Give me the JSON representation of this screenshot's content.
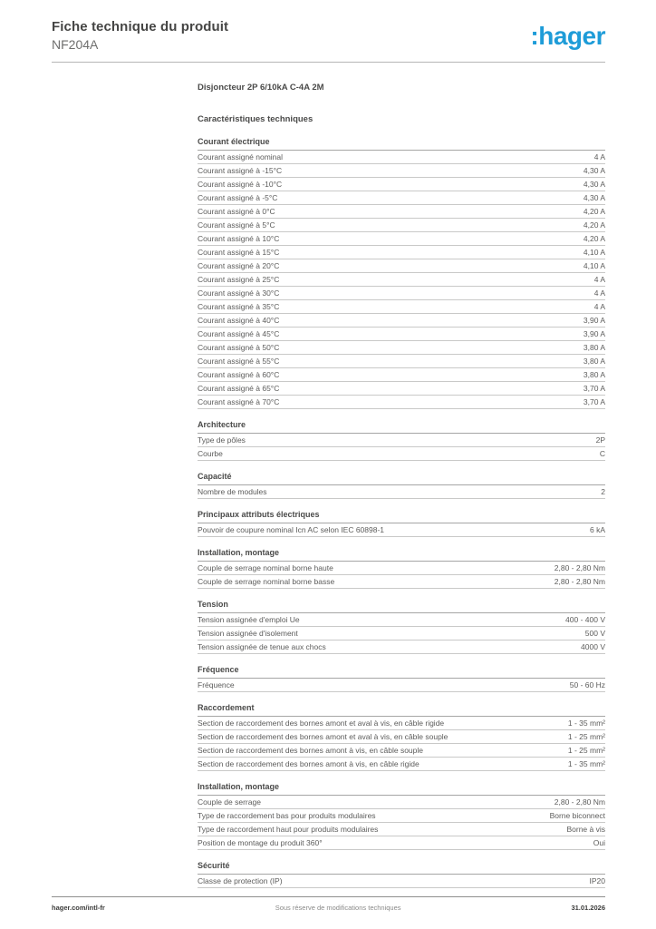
{
  "header": {
    "title": "Fiche technique du produit",
    "subtitle": "NF204A",
    "logo_text": ":hager",
    "logo_color": "#1e9cd8"
  },
  "product": {
    "name": "Disjoncteur 2P 6/10kA C-4A 2M",
    "characteristics_heading": "Caractéristiques techniques"
  },
  "sections": [
    {
      "title": "Courant électrique",
      "rows": [
        {
          "label": "Courant assigné nominal",
          "value": "4 A"
        },
        {
          "label": "Courant assigné à -15°C",
          "value": "4,30 A"
        },
        {
          "label": "Courant assigné à -10°C",
          "value": "4,30 A"
        },
        {
          "label": "Courant assigné à -5°C",
          "value": "4,30 A"
        },
        {
          "label": "Courant assigné à 0°C",
          "value": "4,20 A"
        },
        {
          "label": "Courant assigné à 5°C",
          "value": "4,20 A"
        },
        {
          "label": "Courant assigné à 10°C",
          "value": "4,20 A"
        },
        {
          "label": "Courant assigné à 15°C",
          "value": "4,10 A"
        },
        {
          "label": "Courant assigné à 20°C",
          "value": "4,10 A"
        },
        {
          "label": "Courant assigné à 25°C",
          "value": "4 A"
        },
        {
          "label": "Courant assigné à 30°C",
          "value": "4 A"
        },
        {
          "label": "Courant assigné à 35°C",
          "value": "4 A"
        },
        {
          "label": "Courant assigné à 40°C",
          "value": "3,90 A"
        },
        {
          "label": "Courant assigné à 45°C",
          "value": "3,90 A"
        },
        {
          "label": "Courant assigné à 50°C",
          "value": "3,80 A"
        },
        {
          "label": "Courant assigné à 55°C",
          "value": "3,80 A"
        },
        {
          "label": "Courant assigné à 60°C",
          "value": "3,80 A"
        },
        {
          "label": "Courant assigné à 65°C",
          "value": "3,70 A"
        },
        {
          "label": "Courant assigné à 70°C",
          "value": "3,70 A"
        }
      ]
    },
    {
      "title": "Architecture",
      "rows": [
        {
          "label": "Type de pôles",
          "value": "2P"
        },
        {
          "label": "Courbe",
          "value": "C"
        }
      ]
    },
    {
      "title": "Capacité",
      "rows": [
        {
          "label": "Nombre de modules",
          "value": "2"
        }
      ]
    },
    {
      "title": "Principaux attributs électriques",
      "rows": [
        {
          "label": "Pouvoir de coupure nominal Icn AC selon IEC 60898-1",
          "value": "6 kA"
        }
      ]
    },
    {
      "title": "Installation, montage",
      "rows": [
        {
          "label": "Couple de serrage nominal borne haute",
          "value": "2,80 - 2,80 Nm"
        },
        {
          "label": "Couple de serrage nominal borne basse",
          "value": "2,80 - 2,80 Nm"
        }
      ]
    },
    {
      "title": "Tension",
      "rows": [
        {
          "label": "Tension assignée d'emploi Ue",
          "value": "400 - 400 V"
        },
        {
          "label": "Tension assignée d'isolement",
          "value": "500 V"
        },
        {
          "label": "Tension assignée de tenue aux chocs",
          "value": "4000 V"
        }
      ]
    },
    {
      "title": "Fréquence",
      "rows": [
        {
          "label": "Fréquence",
          "value": "50 - 60 Hz"
        }
      ]
    },
    {
      "title": "Raccordement",
      "rows": [
        {
          "label": "Section de raccordement des bornes amont et aval à vis, en câble rigide",
          "value": "1 - 35 mm²"
        },
        {
          "label": "Section de raccordement des bornes amont et aval à vis, en câble souple",
          "value": "1 - 25 mm²"
        },
        {
          "label": "Section de raccordement des bornes amont à vis, en câble souple",
          "value": "1 - 25 mm²"
        },
        {
          "label": "Section de raccordement des bornes amont à vis, en câble rigide",
          "value": "1 - 35 mm²"
        }
      ]
    },
    {
      "title": "Installation, montage",
      "rows": [
        {
          "label": "Couple de serrage",
          "value": "2,80 - 2,80 Nm"
        },
        {
          "label": "Type de raccordement bas pour produits modulaires",
          "value": "Borne biconnect"
        },
        {
          "label": "Type de raccordement haut pour produits modulaires",
          "value": "Borne à vis"
        },
        {
          "label": "Position de montage du produit 360°",
          "value": "Oui"
        }
      ]
    },
    {
      "title": "Sécurité",
      "rows": [
        {
          "label": "Classe de protection (IP)",
          "value": "IP20"
        }
      ]
    }
  ],
  "footer": {
    "site": "hager.com/intl-fr",
    "note": "Sous réserve de modifications techniques",
    "date": "31.01.2026"
  }
}
